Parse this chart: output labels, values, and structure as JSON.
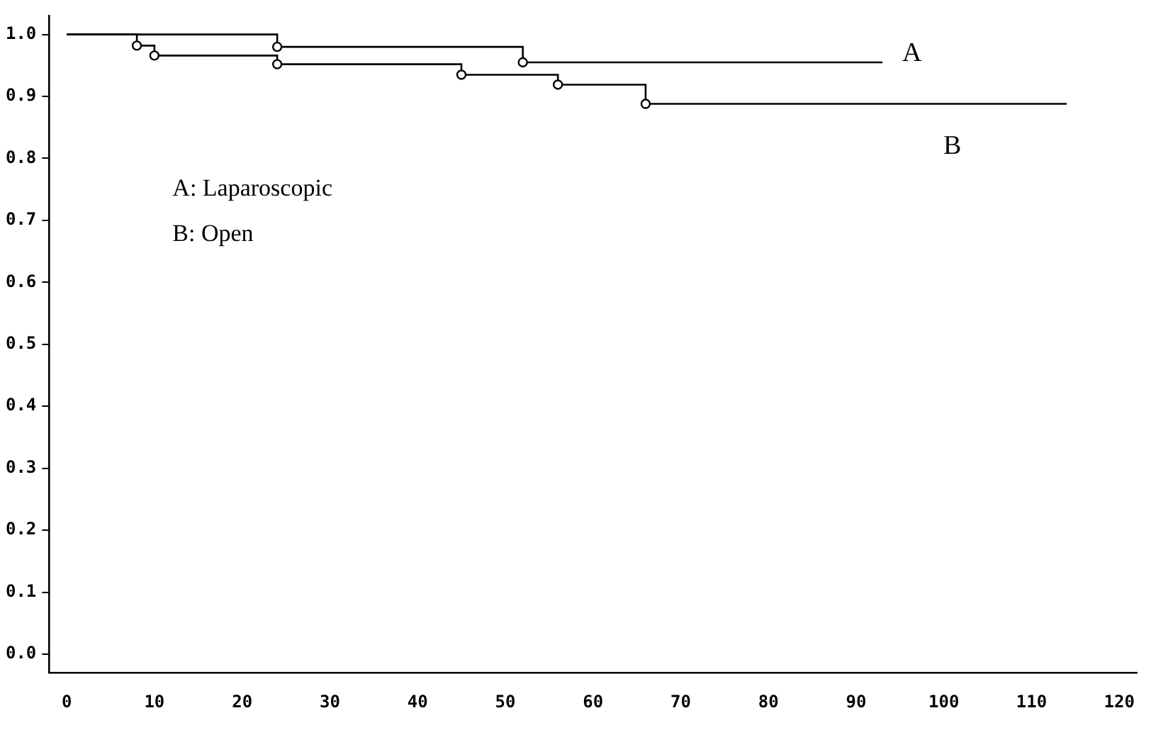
{
  "chart_data": {
    "type": "step",
    "xlim": [
      -2,
      122
    ],
    "xticks": [
      0,
      10,
      20,
      30,
      40,
      50,
      60,
      70,
      80,
      90,
      100,
      110,
      120
    ],
    "ylim": [
      -0.03,
      1.03
    ],
    "yticks": [
      {
        "value": 0,
        "label": "0.0"
      },
      {
        "value": 0.1,
        "label": "0.1"
      },
      {
        "value": 0.2,
        "label": "0.2"
      },
      {
        "value": 0.3,
        "label": "0.3"
      },
      {
        "value": 0.4,
        "label": "0.4"
      },
      {
        "value": 0.5,
        "label": "0.5"
      },
      {
        "value": 0.6,
        "label": "0.6"
      },
      {
        "value": 0.7,
        "label": "0.7"
      },
      {
        "value": 0.8,
        "label": "0.8"
      },
      {
        "value": 0.9,
        "label": "0.9"
      },
      {
        "value": 1,
        "label": "1.0"
      }
    ],
    "series": [
      {
        "name": "A",
        "color": "#000000",
        "x": [
          0,
          24,
          52,
          93
        ],
        "values": [
          1,
          0.98,
          0.955,
          0.955
        ]
      },
      {
        "name": "B",
        "color": "#000000",
        "x": [
          0,
          8,
          10,
          24,
          45,
          56,
          66,
          114
        ],
        "values": [
          1,
          0.982,
          0.966,
          0.952,
          0.935,
          0.919,
          0.888,
          0.888
        ]
      }
    ],
    "annotations": [
      "A: Laparoscopic",
      "B: Open"
    ],
    "marker": "circle",
    "grid": false,
    "legend": false
  }
}
